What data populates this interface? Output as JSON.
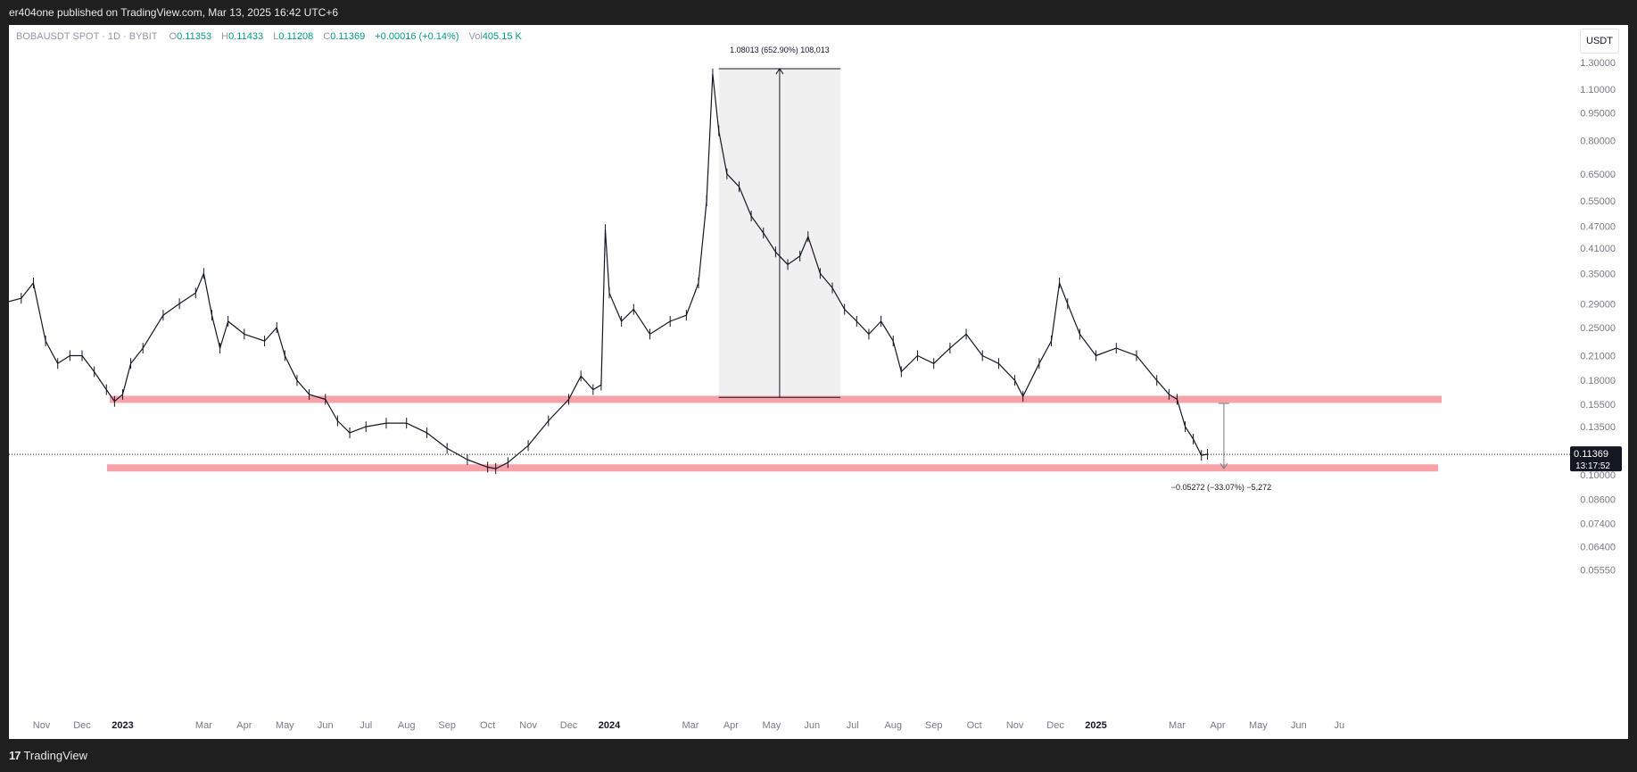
{
  "header": {
    "publish_text": "er404one published on TradingView.com, Mar 13, 2025 16:42 UTC+6"
  },
  "legend": {
    "symbol": "BOBAUSDT SPOT · 1D · BYBIT",
    "o_label": "O",
    "o_value": "0.11353",
    "h_label": "H",
    "h_value": "0.11433",
    "l_label": "L",
    "l_value": "0.11208",
    "c_label": "C",
    "c_value": "0.11369",
    "change": "+0.00016 (+0.14%)",
    "vol_label": "Vol",
    "vol_value": "405.15 K"
  },
  "quote_currency_button": "USDT",
  "price_badge": {
    "price": "0.11369",
    "countdown": "13:17:52"
  },
  "footer": {
    "brand": "TradingView",
    "logo_glyph": "17"
  },
  "colors": {
    "zone": "#f7a1a9",
    "measure_fill": "#f0f0f0",
    "axis_text": "#787b86",
    "line": "#131722",
    "up": "#089981"
  },
  "chart_data": {
    "type": "line",
    "title": "BOBAUSDT SPOT · 1D · BYBIT",
    "y_scale": "log",
    "ylim": [
      0.05,
      1.4
    ],
    "y_ticks": [
      "1.30000",
      "1.10000",
      "0.95000",
      "0.80000",
      "0.65000",
      "0.55000",
      "0.47000",
      "0.41000",
      "0.35000",
      "0.29000",
      "0.25000",
      "0.21000",
      "0.18000",
      "0.15500",
      "0.13500",
      "0.11500",
      "0.10000",
      "0.08600",
      "0.07400",
      "0.06400",
      "0.05550"
    ],
    "x_ticks": [
      {
        "label": "Nov",
        "t": -1
      },
      {
        "label": "Dec",
        "t": 0
      },
      {
        "label": "2023",
        "t": 1,
        "bold": true
      },
      {
        "label": "Mar",
        "t": 3
      },
      {
        "label": "Apr",
        "t": 4
      },
      {
        "label": "May",
        "t": 5
      },
      {
        "label": "Jun",
        "t": 6
      },
      {
        "label": "Jul",
        "t": 7
      },
      {
        "label": "Aug",
        "t": 8
      },
      {
        "label": "Sep",
        "t": 9
      },
      {
        "label": "Oct",
        "t": 10
      },
      {
        "label": "Nov",
        "t": 11
      },
      {
        "label": "Dec",
        "t": 12
      },
      {
        "label": "2024",
        "t": 13,
        "bold": true
      },
      {
        "label": "Mar",
        "t": 15
      },
      {
        "label": "Apr",
        "t": 16
      },
      {
        "label": "May",
        "t": 17
      },
      {
        "label": "Jun",
        "t": 18
      },
      {
        "label": "Jul",
        "t": 19
      },
      {
        "label": "Aug",
        "t": 20
      },
      {
        "label": "Sep",
        "t": 21
      },
      {
        "label": "Oct",
        "t": 22
      },
      {
        "label": "Nov",
        "t": 23
      },
      {
        "label": "Dec",
        "t": 24
      },
      {
        "label": "2025",
        "t": 25,
        "bold": true
      },
      {
        "label": "Mar",
        "t": 27
      },
      {
        "label": "Apr",
        "t": 28
      },
      {
        "label": "May",
        "t": 29
      },
      {
        "label": "Jun",
        "t": 30
      },
      {
        "label": "Ju",
        "t": 31
      }
    ],
    "x_range": [
      -2.0,
      31.0
    ],
    "series": [
      {
        "name": "BOBAUSDT",
        "points": [
          [
            -2.0,
            0.29
          ],
          [
            -1.5,
            0.3
          ],
          [
            -1.2,
            0.33
          ],
          [
            -0.9,
            0.23
          ],
          [
            -0.6,
            0.2
          ],
          [
            -0.3,
            0.21
          ],
          [
            0.0,
            0.21
          ],
          [
            0.3,
            0.19
          ],
          [
            0.6,
            0.17
          ],
          [
            0.8,
            0.158
          ],
          [
            1.0,
            0.165
          ],
          [
            1.2,
            0.2
          ],
          [
            1.5,
            0.22
          ],
          [
            2.0,
            0.27
          ],
          [
            2.4,
            0.29
          ],
          [
            2.8,
            0.31
          ],
          [
            3.0,
            0.35
          ],
          [
            3.2,
            0.27
          ],
          [
            3.4,
            0.22
          ],
          [
            3.6,
            0.26
          ],
          [
            4.0,
            0.24
          ],
          [
            4.5,
            0.23
          ],
          [
            4.8,
            0.25
          ],
          [
            5.0,
            0.21
          ],
          [
            5.3,
            0.18
          ],
          [
            5.6,
            0.165
          ],
          [
            6.0,
            0.16
          ],
          [
            6.3,
            0.14
          ],
          [
            6.6,
            0.13
          ],
          [
            7.0,
            0.135
          ],
          [
            7.5,
            0.138
          ],
          [
            8.0,
            0.138
          ],
          [
            8.5,
            0.13
          ],
          [
            9.0,
            0.118
          ],
          [
            9.5,
            0.11
          ],
          [
            10.0,
            0.105
          ],
          [
            10.2,
            0.104
          ],
          [
            10.5,
            0.108
          ],
          [
            11.0,
            0.12
          ],
          [
            11.5,
            0.14
          ],
          [
            12.0,
            0.16
          ],
          [
            12.3,
            0.185
          ],
          [
            12.6,
            0.17
          ],
          [
            12.8,
            0.175
          ],
          [
            12.9,
            0.46
          ],
          [
            13.0,
            0.31
          ],
          [
            13.3,
            0.26
          ],
          [
            13.6,
            0.28
          ],
          [
            14.0,
            0.24
          ],
          [
            14.5,
            0.26
          ],
          [
            14.9,
            0.27
          ],
          [
            15.2,
            0.33
          ],
          [
            15.4,
            0.55
          ],
          [
            15.55,
            1.21
          ],
          [
            15.7,
            0.85
          ],
          [
            15.9,
            0.65
          ],
          [
            16.2,
            0.6
          ],
          [
            16.5,
            0.5
          ],
          [
            16.8,
            0.45
          ],
          [
            17.1,
            0.4
          ],
          [
            17.4,
            0.37
          ],
          [
            17.7,
            0.39
          ],
          [
            17.9,
            0.44
          ],
          [
            18.2,
            0.35
          ],
          [
            18.5,
            0.32
          ],
          [
            18.8,
            0.28
          ],
          [
            19.1,
            0.26
          ],
          [
            19.4,
            0.24
          ],
          [
            19.7,
            0.26
          ],
          [
            20.0,
            0.23
          ],
          [
            20.2,
            0.19
          ],
          [
            20.6,
            0.21
          ],
          [
            21.0,
            0.2
          ],
          [
            21.4,
            0.22
          ],
          [
            21.8,
            0.24
          ],
          [
            22.2,
            0.21
          ],
          [
            22.6,
            0.2
          ],
          [
            23.0,
            0.18
          ],
          [
            23.2,
            0.163
          ],
          [
            23.6,
            0.2
          ],
          [
            23.9,
            0.23
          ],
          [
            24.1,
            0.33
          ],
          [
            24.3,
            0.29
          ],
          [
            24.6,
            0.24
          ],
          [
            25.0,
            0.21
          ],
          [
            25.5,
            0.22
          ],
          [
            26.0,
            0.21
          ],
          [
            26.5,
            0.18
          ],
          [
            26.8,
            0.165
          ],
          [
            27.0,
            0.16
          ],
          [
            27.2,
            0.135
          ],
          [
            27.4,
            0.125
          ],
          [
            27.6,
            0.113
          ],
          [
            27.75,
            0.1137
          ]
        ]
      }
    ],
    "support_zones": [
      0.16,
      0.1045
    ],
    "measure_up": {
      "from_t": 15.7,
      "to_t": 18.7,
      "low": 0.162,
      "high": 1.25,
      "label": "1.08013 (652.90%) 108,013"
    },
    "measure_down": {
      "t": 28.0,
      "high": 0.156,
      "low": 0.104,
      "label": "−0.05272 (−33.07%) −5,272"
    },
    "last_price": 0.11369
  }
}
